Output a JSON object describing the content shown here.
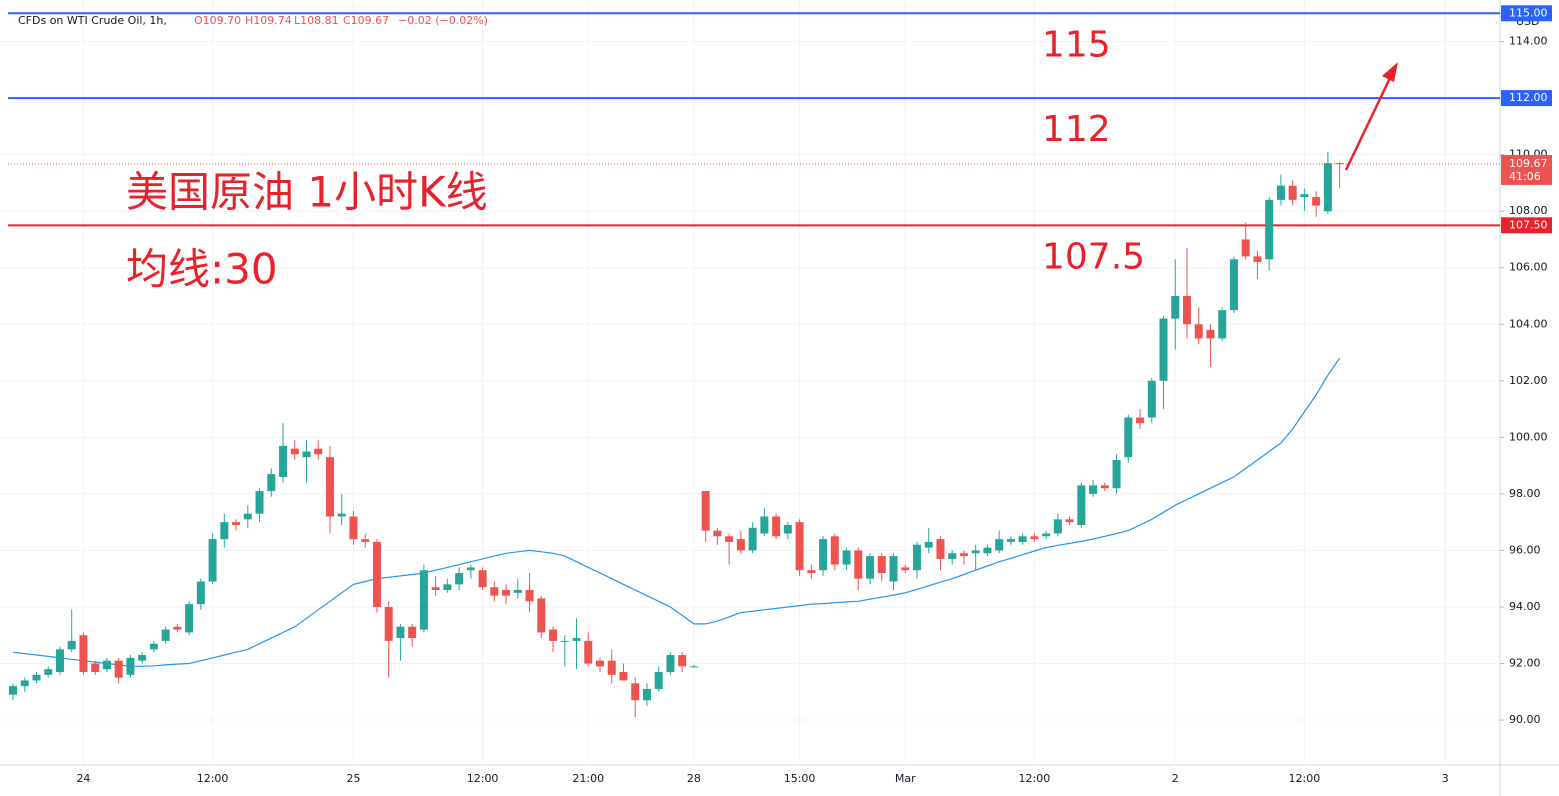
{
  "chart_data": {
    "type": "candlestick",
    "symbol": "CFDs on WTI Crude Oil, 1h,",
    "ohlc_legend": [
      "O109.70",
      "H109.74",
      "L108.81",
      "C109.67",
      "−0.02 (−0.02%)"
    ],
    "annotations": [
      "美国原油 1小时K线",
      "均线:30"
    ],
    "currency": "USD",
    "up_color": "#26a69a",
    "down_color": "#ef5350",
    "grid": true,
    "ylim": [
      88.41,
      115.47
    ],
    "yticks": [
      {
        "value": 90,
        "label": "90.00"
      },
      {
        "value": 92,
        "label": "92.00"
      },
      {
        "value": 94,
        "label": "94.00"
      },
      {
        "value": 96,
        "label": "96.00"
      },
      {
        "value": 98,
        "label": "98.00"
      },
      {
        "value": 100,
        "label": "100.00"
      },
      {
        "value": 102,
        "label": "102.00"
      },
      {
        "value": 104,
        "label": "104.00"
      },
      {
        "value": 106,
        "label": "106.00"
      },
      {
        "value": 108,
        "label": "108.00"
      },
      {
        "value": 110,
        "label": "110.00"
      },
      {
        "value": 114,
        "label": "114.00"
      }
    ],
    "categories": [
      null,
      null,
      null,
      null,
      null,
      null,
      "24",
      null,
      null,
      null,
      null,
      null,
      null,
      null,
      null,
      null,
      null,
      "12:00",
      null,
      null,
      null,
      null,
      null,
      null,
      null,
      null,
      null,
      null,
      null,
      "25",
      null,
      null,
      null,
      null,
      null,
      null,
      null,
      null,
      null,
      null,
      "12:00",
      null,
      null,
      null,
      null,
      null,
      null,
      null,
      null,
      "21:00",
      null,
      null,
      null,
      null,
      null,
      null,
      null,
      null,
      "28",
      null,
      null,
      null,
      null,
      null,
      null,
      null,
      null,
      "15:00",
      null,
      null,
      null,
      null,
      null,
      null,
      null,
      null,
      "Mar",
      null,
      null,
      null,
      null,
      null,
      null,
      null,
      null,
      null,
      null,
      "12:00",
      null,
      null,
      null,
      null,
      null,
      null,
      null,
      null,
      null,
      null,
      null,
      "2",
      null,
      null,
      null,
      null,
      null,
      null,
      null,
      null,
      null,
      null,
      "12:00",
      null,
      null,
      null,
      null,
      null,
      null,
      null,
      null,
      null,
      null,
      null,
      "3"
    ],
    "ohlc": [
      [
        90.9,
        91.3,
        90.7,
        91.2
      ],
      [
        91.2,
        91.5,
        91.0,
        91.4
      ],
      [
        91.4,
        91.7,
        91.3,
        91.6
      ],
      [
        91.6,
        91.9,
        91.5,
        91.8
      ],
      [
        91.7,
        92.6,
        91.6,
        92.5
      ],
      [
        92.5,
        93.9,
        92.4,
        92.8
      ],
      [
        93.0,
        93.1,
        91.6,
        91.7
      ],
      [
        92.0,
        92.1,
        91.6,
        91.7
      ],
      [
        91.8,
        92.2,
        91.7,
        92.1
      ],
      [
        92.1,
        92.2,
        91.3,
        91.5
      ],
      [
        91.6,
        92.3,
        91.5,
        92.2
      ],
      [
        92.1,
        92.4,
        92.0,
        92.3
      ],
      [
        92.5,
        92.8,
        92.4,
        92.7
      ],
      [
        92.8,
        93.3,
        92.7,
        93.2
      ],
      [
        93.3,
        93.4,
        93.1,
        93.2
      ],
      [
        93.1,
        94.2,
        93.0,
        94.1
      ],
      [
        94.1,
        95.0,
        93.9,
        94.9
      ],
      [
        94.9,
        96.6,
        94.8,
        96.4
      ],
      [
        96.4,
        97.3,
        96.1,
        97.0
      ],
      [
        97.0,
        97.1,
        96.7,
        96.9
      ],
      [
        97.1,
        97.6,
        96.8,
        97.3
      ],
      [
        97.3,
        98.2,
        97.0,
        98.1
      ],
      [
        98.1,
        98.9,
        97.9,
        98.7
      ],
      [
        98.6,
        100.5,
        98.4,
        99.7
      ],
      [
        99.6,
        99.9,
        99.2,
        99.4
      ],
      [
        99.3,
        99.9,
        98.4,
        99.5
      ],
      [
        99.6,
        99.9,
        99.2,
        99.4
      ],
      [
        99.3,
        99.7,
        96.6,
        97.2
      ],
      [
        97.2,
        98.0,
        96.9,
        97.3
      ],
      [
        97.2,
        97.4,
        96.2,
        96.4
      ],
      [
        96.4,
        96.6,
        96.1,
        96.3
      ],
      [
        96.3,
        96.4,
        93.8,
        94.0
      ],
      [
        94.0,
        94.2,
        91.5,
        92.8
      ],
      [
        92.9,
        93.4,
        92.1,
        93.3
      ],
      [
        93.3,
        93.4,
        92.6,
        92.9
      ],
      [
        93.2,
        95.5,
        93.1,
        95.3
      ],
      [
        94.7,
        95.1,
        94.4,
        94.6
      ],
      [
        94.6,
        95.0,
        94.5,
        94.8
      ],
      [
        94.8,
        95.4,
        94.6,
        95.2
      ],
      [
        95.3,
        95.5,
        95.0,
        95.4
      ],
      [
        95.3,
        95.4,
        94.6,
        94.7
      ],
      [
        94.7,
        94.9,
        94.2,
        94.4
      ],
      [
        94.6,
        94.8,
        94.1,
        94.4
      ],
      [
        94.5,
        95.0,
        94.3,
        94.6
      ],
      [
        94.6,
        95.2,
        93.8,
        94.2
      ],
      [
        94.3,
        94.4,
        92.9,
        93.1
      ],
      [
        93.2,
        93.3,
        92.4,
        92.8
      ],
      [
        92.8,
        93.0,
        91.9,
        92.8
      ],
      [
        92.8,
        93.6,
        91.8,
        92.9
      ],
      [
        92.8,
        93.1,
        91.9,
        92.0
      ],
      [
        92.1,
        92.2,
        91.7,
        91.9
      ],
      [
        92.1,
        92.5,
        91.3,
        91.6
      ],
      [
        91.7,
        92.0,
        91.4,
        91.4
      ],
      [
        91.3,
        91.5,
        90.1,
        90.7
      ],
      [
        90.7,
        91.3,
        90.5,
        91.1
      ],
      [
        91.1,
        91.9,
        91.0,
        91.7
      ],
      [
        91.7,
        92.4,
        91.6,
        92.3
      ],
      [
        92.3,
        92.4,
        91.7,
        91.9
      ],
      [
        91.9,
        91.95,
        91.85,
        91.9
      ],
      [
        98.1,
        98.1,
        96.3,
        96.7
      ],
      [
        96.7,
        96.8,
        96.2,
        96.5
      ],
      [
        96.5,
        96.6,
        95.5,
        96.3
      ],
      [
        96.4,
        96.7,
        95.9,
        96.0
      ],
      [
        96.0,
        97.0,
        95.9,
        96.8
      ],
      [
        96.6,
        97.5,
        96.5,
        97.2
      ],
      [
        97.2,
        97.3,
        96.4,
        96.5
      ],
      [
        96.6,
        97.0,
        96.4,
        96.9
      ],
      [
        97.0,
        97.1,
        95.1,
        95.3
      ],
      [
        95.3,
        95.5,
        95.0,
        95.2
      ],
      [
        95.3,
        96.5,
        95.1,
        96.4
      ],
      [
        96.5,
        96.6,
        95.3,
        95.5
      ],
      [
        95.5,
        96.1,
        95.3,
        96.0
      ],
      [
        96.0,
        96.1,
        94.6,
        95.0
      ],
      [
        95.0,
        95.9,
        94.8,
        95.8
      ],
      [
        95.8,
        95.9,
        94.9,
        95.2
      ],
      [
        94.9,
        95.9,
        94.6,
        95.8
      ],
      [
        95.4,
        95.5,
        95.2,
        95.3
      ],
      [
        95.3,
        96.3,
        95.0,
        96.2
      ],
      [
        96.1,
        96.8,
        95.9,
        96.3
      ],
      [
        96.4,
        96.5,
        95.3,
        95.7
      ],
      [
        95.7,
        96.0,
        95.5,
        95.9
      ],
      [
        95.9,
        96.0,
        95.5,
        95.8
      ],
      [
        95.9,
        96.2,
        95.3,
        96.0
      ],
      [
        95.9,
        96.2,
        95.8,
        96.1
      ],
      [
        96.0,
        96.7,
        95.9,
        96.4
      ],
      [
        96.3,
        96.5,
        96.2,
        96.4
      ],
      [
        96.3,
        96.6,
        96.2,
        96.5
      ],
      [
        96.5,
        96.6,
        96.3,
        96.4
      ],
      [
        96.5,
        96.7,
        96.4,
        96.6
      ],
      [
        96.6,
        97.3,
        96.5,
        97.1
      ],
      [
        97.1,
        97.2,
        96.9,
        97.0
      ],
      [
        96.9,
        98.4,
        96.8,
        98.3
      ],
      [
        98.0,
        98.5,
        97.9,
        98.3
      ],
      [
        98.3,
        98.4,
        98.1,
        98.2
      ],
      [
        98.2,
        99.4,
        98.0,
        99.2
      ],
      [
        99.3,
        100.8,
        99.1,
        100.7
      ],
      [
        100.7,
        101.0,
        100.3,
        100.5
      ],
      [
        100.7,
        102.1,
        100.5,
        102.0
      ],
      [
        102.0,
        104.3,
        101.0,
        104.2
      ],
      [
        104.2,
        106.3,
        103.1,
        105.0
      ],
      [
        105.0,
        106.7,
        103.5,
        104.0
      ],
      [
        104.0,
        104.6,
        103.3,
        103.5
      ],
      [
        103.8,
        104.0,
        102.5,
        103.5
      ],
      [
        103.5,
        104.6,
        103.4,
        104.5
      ],
      [
        104.5,
        106.4,
        104.4,
        106.3
      ],
      [
        107.0,
        107.6,
        106.3,
        106.4
      ],
      [
        106.4,
        106.6,
        105.6,
        106.2
      ],
      [
        106.3,
        108.5,
        105.9,
        108.4
      ],
      [
        108.4,
        109.3,
        108.2,
        108.9
      ],
      [
        108.9,
        109.1,
        108.2,
        108.4
      ],
      [
        108.5,
        108.8,
        108.0,
        108.6
      ],
      [
        108.5,
        108.7,
        107.8,
        108.2
      ],
      [
        108.0,
        110.1,
        107.9,
        109.7
      ],
      [
        109.7,
        109.74,
        108.81,
        109.67
      ],
      null,
      null,
      null,
      null,
      null,
      null,
      null,
      null,
      null
    ],
    "ma": {
      "color": "#2196f3",
      "values": [
        92.4,
        92.35,
        92.3,
        92.25,
        92.2,
        92.15,
        92.1,
        92.05,
        92.0,
        91.95,
        91.9,
        91.9,
        91.92,
        91.95,
        91.98,
        92.0,
        92.1,
        92.2,
        92.3,
        92.4,
        92.5,
        92.7,
        92.9,
        93.1,
        93.3,
        93.6,
        93.9,
        94.2,
        94.5,
        94.8,
        94.9,
        95.0,
        95.05,
        95.1,
        95.15,
        95.2,
        95.3,
        95.4,
        95.5,
        95.6,
        95.7,
        95.8,
        95.9,
        95.95,
        96.0,
        95.95,
        95.9,
        95.8,
        95.6,
        95.4,
        95.2,
        95.0,
        94.8,
        94.6,
        94.4,
        94.2,
        94.0,
        93.7,
        93.4,
        93.4,
        93.5,
        93.65,
        93.8,
        93.85,
        93.9,
        93.95,
        94.0,
        94.05,
        94.1,
        94.12,
        94.15,
        94.18,
        94.2,
        94.28,
        94.35,
        94.42,
        94.5,
        94.62,
        94.75,
        94.88,
        95.0,
        95.15,
        95.3,
        95.45,
        95.6,
        95.72,
        95.85,
        95.98,
        96.1,
        96.18,
        96.25,
        96.32,
        96.4,
        96.5,
        96.6,
        96.7,
        96.9,
        97.1,
        97.35,
        97.6,
        97.8,
        98.0,
        98.2,
        98.4,
        98.6,
        98.9,
        99.2,
        99.5,
        99.8,
        100.3,
        100.9,
        101.5,
        102.2,
        102.8,
        null,
        null,
        null,
        null,
        null,
        null,
        null,
        null,
        null
      ]
    },
    "levels": [
      {
        "value": 115,
        "label": "115",
        "tag": "115.00",
        "color": "#2962ff"
      },
      {
        "value": 112,
        "label": "112",
        "tag": "112.00",
        "color": "#2962ff"
      },
      {
        "value": 107.5,
        "label": "107.5",
        "tag": "107.50",
        "color": "#e8212b"
      }
    ],
    "last": {
      "value": 109.67,
      "countdown": "41:06",
      "color": "#ef5350"
    }
  }
}
